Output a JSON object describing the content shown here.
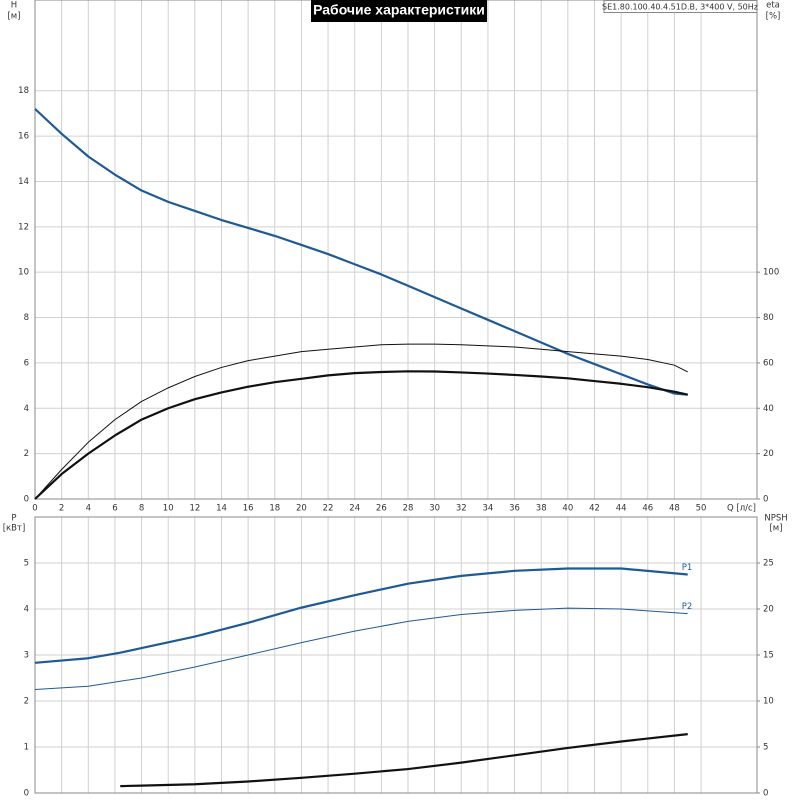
{
  "chart_data": [
    {
      "type": "line",
      "title": "Рабочие характеристики",
      "subtitle": "SE1.80.100.40.4.51D.B, 3*400 V, 50Hz",
      "ylabel": "H",
      "yunit": "[м]",
      "y2label": "eta",
      "y2unit": "[%]",
      "xlabel": "Q [л/с]",
      "x": [
        0,
        2,
        4,
        6,
        8,
        10,
        12,
        14,
        16,
        18,
        20,
        22,
        24,
        26,
        28,
        30,
        32,
        34,
        36,
        38,
        40,
        42,
        44,
        46,
        48,
        49
      ],
      "xlim": [
        0,
        54.2
      ],
      "xticks": [
        0,
        2,
        4,
        6,
        8,
        10,
        12,
        14,
        16,
        18,
        20,
        22,
        24,
        26,
        28,
        30,
        32,
        34,
        36,
        38,
        40,
        42,
        44,
        46,
        48,
        50
      ],
      "xticklabels": true,
      "ylim": [
        0,
        22
      ],
      "yticks": [
        0,
        2,
        4,
        6,
        8,
        10,
        12,
        14,
        16,
        18
      ],
      "y2lim": [
        0,
        220
      ],
      "y2ticks": [
        0,
        20,
        40,
        60,
        80,
        100
      ],
      "grid": true,
      "series": [
        {
          "color": "#1f5a94",
          "style": "thick",
          "values": [
            17.2,
            16.1,
            15.1,
            14.3,
            13.6,
            13.1,
            12.7,
            12.3,
            11.95,
            11.6,
            11.2,
            10.8,
            10.35,
            9.9,
            9.4,
            8.9,
            8.4,
            7.9,
            7.4,
            6.9,
            6.4,
            5.95,
            5.5,
            5.05,
            4.65,
            4.6
          ]
        },
        {
          "color": "#111111",
          "style": "thin",
          "axis": "y2",
          "values": [
            0,
            13,
            25,
            35,
            43,
            49,
            54,
            58,
            61,
            63,
            65,
            66,
            67,
            68,
            68.3,
            68.3,
            68,
            67.5,
            67,
            66,
            65,
            64,
            63,
            61.5,
            59,
            56
          ]
        },
        {
          "color": "#111111",
          "style": "thick",
          "axis": "y2",
          "values": [
            0,
            11,
            20,
            28,
            35,
            40,
            44,
            47,
            49.5,
            51.5,
            53,
            54.5,
            55.5,
            56,
            56.3,
            56.2,
            55.8,
            55.3,
            54.7,
            54,
            53.2,
            52,
            50.8,
            49.3,
            47.3,
            46
          ]
        }
      ]
    },
    {
      "type": "line",
      "ylabel": "P",
      "yunit": "[кВт]",
      "y2label": "NPSH",
      "y2unit": "[м]",
      "x": [
        0,
        4,
        6.4,
        8,
        12,
        16,
        20,
        24,
        28,
        32,
        36,
        40,
        44,
        49
      ],
      "xlim": [
        0,
        54.2
      ],
      "xticks": [
        0,
        2,
        4,
        6,
        8,
        10,
        12,
        14,
        16,
        18,
        20,
        22,
        24,
        26,
        28,
        30,
        32,
        34,
        36,
        38,
        40,
        42,
        44,
        46,
        48,
        50
      ],
      "xticklabels": false,
      "ylim": [
        0,
        6
      ],
      "yticks": [
        0,
        1,
        2,
        3,
        4,
        5
      ],
      "y2lim": [
        0,
        30
      ],
      "y2ticks": [
        0,
        5,
        10,
        15,
        20,
        25
      ],
      "grid": true,
      "series": [
        {
          "name": "P1",
          "color": "#1f5a94",
          "style": "thick",
          "values": [
            2.83,
            2.93,
            3.05,
            3.15,
            3.4,
            3.7,
            4.03,
            4.3,
            4.55,
            4.72,
            4.83,
            4.88,
            4.88,
            4.75
          ]
        },
        {
          "name": "P2",
          "color": "#1f5a94",
          "style": "thin",
          "values": [
            2.25,
            2.32,
            2.43,
            2.5,
            2.74,
            3.0,
            3.27,
            3.52,
            3.73,
            3.88,
            3.97,
            4.02,
            4.0,
            3.9
          ]
        },
        {
          "color": "#111111",
          "style": "thick",
          "axis": "y2",
          "values": [
            null,
            null,
            0.75,
            0.8,
            0.95,
            1.25,
            1.65,
            2.1,
            2.6,
            3.3,
            4.1,
            4.9,
            5.6,
            6.4
          ]
        }
      ]
    }
  ]
}
